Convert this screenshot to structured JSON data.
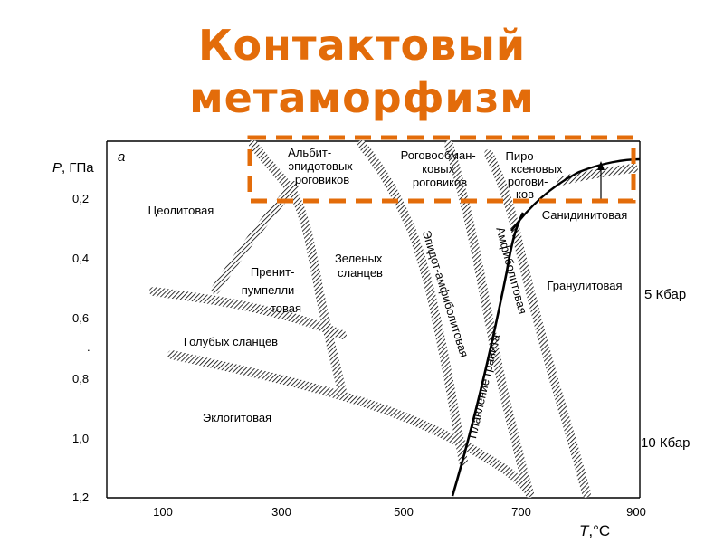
{
  "title": {
    "line1": "Контактовый",
    "line2": "метаморфизм"
  },
  "colors": {
    "title": "#e36c0a",
    "highlight_box": "#e36c0a",
    "ink": "#000000"
  },
  "diagram": {
    "panel_label": "а",
    "y_axis": {
      "label_italic": "P",
      "label_rest": ", ГПа",
      "ticks": [
        {
          "value": 0.2,
          "label": "0,2"
        },
        {
          "value": 0.4,
          "label": "0,4"
        },
        {
          "value": 0.6,
          "label": "0,6"
        },
        {
          "value": 0.7,
          "label": "."
        },
        {
          "value": 0.8,
          "label": "0,8"
        },
        {
          "value": 1.0,
          "label": "1,0"
        },
        {
          "value": 1.2,
          "label": "1,2"
        }
      ]
    },
    "x_axis": {
      "label_italic": "T",
      "label_rest": ",°С",
      "ticks": [
        {
          "value": 100,
          "label": "100"
        },
        {
          "value": 300,
          "label": "300"
        },
        {
          "value": 500,
          "label": "500"
        },
        {
          "value": 700,
          "label": "700"
        },
        {
          "value": 900,
          "label": "900"
        }
      ]
    },
    "right_labels": [
      {
        "value": 0.5,
        "label": "5 Кбар"
      },
      {
        "value": 1.0,
        "label": "10 Кбар"
      }
    ],
    "facies": {
      "albite_epidote": [
        "Альбит-",
        "эпидотовых",
        "роговиков"
      ],
      "hornblende": [
        "Роговообман-",
        "ковых",
        "роговиков"
      ],
      "pyroxene": [
        "Пиро-",
        "ксеновых",
        "рогови-",
        "ков"
      ],
      "sanidinite": "Санидинитовая",
      "zeolite": "Цеолитовая",
      "greenschist": [
        "Зеленых",
        "сланцев"
      ],
      "prehnite": [
        "Пренит-",
        "пумпелли-",
        "товая"
      ],
      "blueschist": "Голубых сланцев",
      "eclogite": "Эклогитовая",
      "epidote_amphibolite": "Эпидот-амфиболитовая",
      "amphibolite": "Амфиболитовая",
      "granite_melting": "Плавление гранита",
      "granulite": "Гранулитовая"
    }
  }
}
